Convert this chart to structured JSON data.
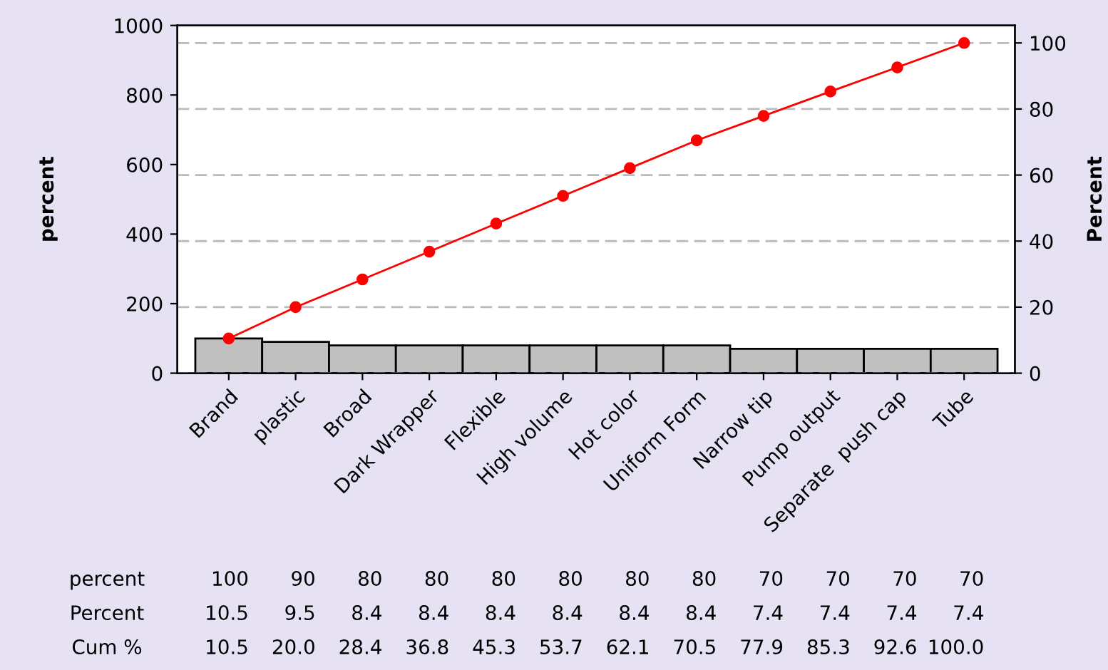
{
  "chart_data": {
    "type": "bar",
    "ylabel": "percent",
    "y2label": "Percent",
    "categories": [
      "Brand",
      "plastic",
      "Broad",
      "Dark Wrapper",
      "Flexible",
      "High volume",
      "Hot color",
      "Uniform Form",
      "Narrow tip",
      "Pump output",
      "Separate  push cap",
      "Tube"
    ],
    "series": [
      {
        "color": "#c0c0c0",
        "values": [
          100,
          90,
          80,
          80,
          80,
          80,
          80,
          80,
          70,
          70,
          70,
          70
        ],
        "value_labels": [
          "100",
          "90",
          "80",
          "80",
          "80",
          "80",
          "80",
          "80",
          "70",
          "70",
          "70",
          "70"
        ]
      },
      {
        "type": "line",
        "axis": "y2",
        "color": "#ff0000",
        "marker": "circle",
        "values": [
          10.5,
          20.0,
          28.4,
          36.8,
          45.3,
          53.7,
          62.1,
          70.5,
          77.9,
          85.3,
          92.6,
          100.0
        ],
        "value_labels": [
          "10.5",
          "20.0",
          "28.4",
          "36.8",
          "45.3",
          "53.7",
          "62.1",
          "70.5",
          "77.9",
          "85.3",
          "92.6",
          "100.0"
        ]
      }
    ],
    "annotations": [
      "percent",
      "Percent",
      "Cum %",
      "10.5",
      "9.5",
      "8.4",
      "8.4",
      "8.4",
      "8.4",
      "8.4",
      "8.4",
      "7.4",
      "7.4",
      "7.4",
      "7.4"
    ],
    "ylim": [
      0,
      1000
    ],
    "yticks": [
      0,
      200,
      400,
      600,
      800,
      1000
    ],
    "y2lim": [
      0,
      105.3
    ],
    "y2ticks": [
      0,
      20,
      40,
      60,
      80,
      100
    ],
    "grid": "y2",
    "line_style": "solid",
    "legend": false
  }
}
